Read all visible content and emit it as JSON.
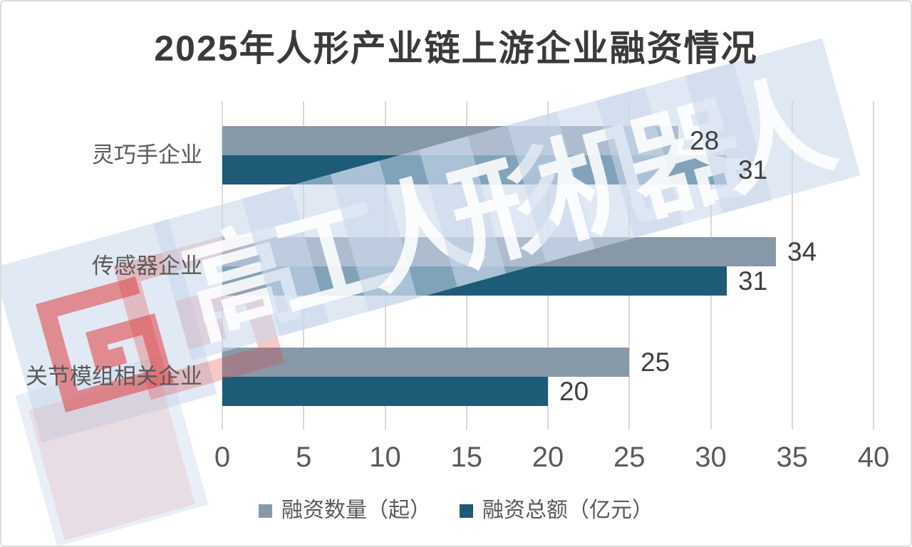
{
  "title": "2025年人形产业链上游企业融资情况",
  "chart_data": {
    "type": "bar",
    "orientation": "horizontal",
    "title": "2025年人形产业链上游企业融资情况",
    "categories": [
      "灵巧手企业",
      "传感器企业",
      "关节模组相关企业"
    ],
    "series": [
      {
        "name": "融资数量（起）",
        "color": "#8799A9",
        "values": [
          28,
          34,
          25
        ]
      },
      {
        "name": "融资总额（亿元）",
        "color": "#1D5B77",
        "values": [
          31,
          31,
          20
        ]
      }
    ],
    "xlim": [
      0,
      40
    ],
    "xticks": [
      0,
      5,
      10,
      15,
      20,
      25,
      30,
      35,
      40
    ],
    "grid": true,
    "value_labels": true,
    "legend_position": "bottom"
  },
  "colors": {
    "grid": "#D9D9D9",
    "axis_text": "#595959",
    "category_text": "#595959",
    "value_label": "#3F3F3F",
    "title_text": "#3A3A3A",
    "watermark_blue": "#C9D7EB",
    "watermark_glyph": "#FFFFFF",
    "logo_red": "#DF4042"
  },
  "watermark": {
    "text": "高工人形机器人",
    "logo_icon": "g-square-spiral-logo"
  }
}
